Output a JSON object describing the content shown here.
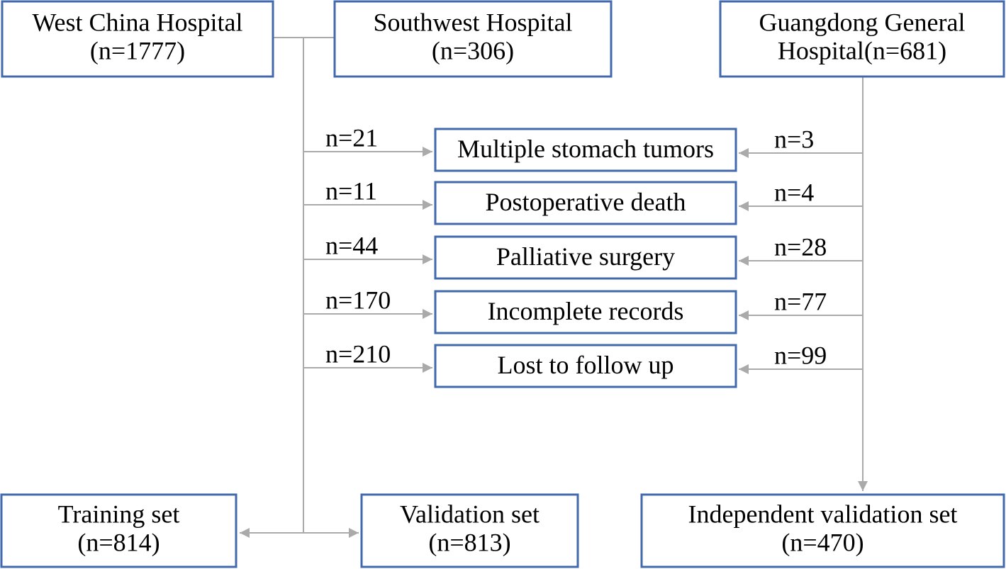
{
  "sources": [
    {
      "lines": [
        "West China Hospital",
        "(n=1777)"
      ]
    },
    {
      "lines": [
        "Southwest Hospital",
        "(n=306)"
      ]
    },
    {
      "lines": [
        "Guangdong General",
        "Hospital(n=681)"
      ]
    }
  ],
  "exclusions": [
    {
      "reason": "Multiple stomach tumors",
      "left": "n=21",
      "right": "n=3"
    },
    {
      "reason": "Postoperative death",
      "left": "n=11",
      "right": "n=4"
    },
    {
      "reason": "Palliative surgery",
      "left": "n=44",
      "right": "n=28"
    },
    {
      "reason": "Incomplete records",
      "left": "n=170",
      "right": "n=77"
    },
    {
      "reason": "Lost to follow up",
      "left": "n=210",
      "right": "n=99"
    }
  ],
  "outcomes": [
    {
      "lines": [
        "Training set",
        "(n=814)"
      ]
    },
    {
      "lines": [
        "Validation set",
        "(n=813)"
      ]
    },
    {
      "lines": [
        "Independent validation set",
        "(n=470)"
      ]
    }
  ]
}
